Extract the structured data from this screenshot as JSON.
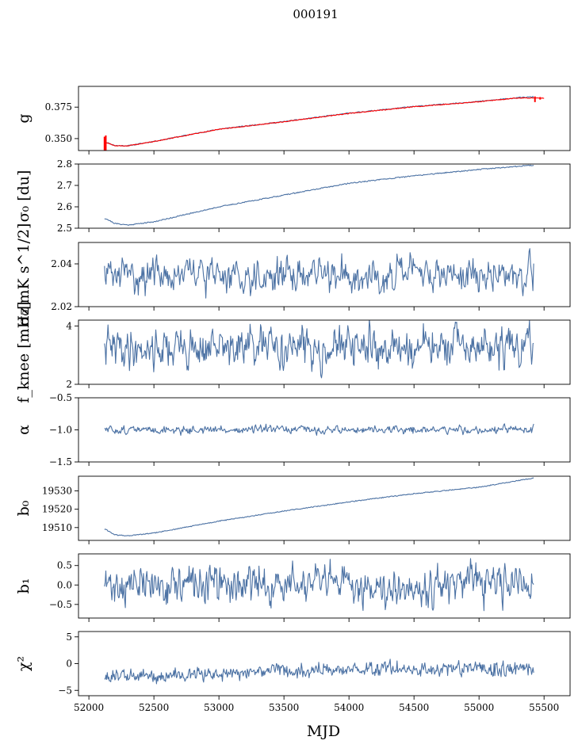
{
  "figure_title": "000191",
  "colors": {
    "series": "#4c72a4",
    "fit": "#ff0000"
  },
  "chart_data": {
    "type": "line",
    "title": "000191",
    "xlabel": "MJD",
    "xlim": [
      51920,
      55700
    ],
    "x_ticks": [
      52000,
      52500,
      53000,
      53500,
      54000,
      54500,
      55000,
      55500
    ],
    "x_tick_labels": [
      "52000",
      "52500",
      "53000",
      "53500",
      "54000",
      "54500",
      "55000",
      "55500"
    ],
    "x_start": 52120,
    "x_end": 55420,
    "panels": [
      {
        "id": "gain",
        "ylabel": "g",
        "ylim": [
          0.3405,
          0.3915
        ],
        "y_ticks": [
          0.35,
          0.375
        ],
        "y_tick_labels": [
          "0.350",
          "0.375"
        ],
        "series": [
          {
            "name": "gain",
            "shape": {
              "kind": "curve",
              "knots": [
                [
                  52120,
                  0.3475
                ],
                [
                  52200,
                  0.3445
                ],
                [
                  52300,
                  0.3443
                ],
                [
                  52500,
                  0.3478
                ],
                [
                  53000,
                  0.3575
                ],
                [
                  53500,
                  0.3635
                ],
                [
                  54000,
                  0.3702
                ],
                [
                  54500,
                  0.3755
                ],
                [
                  55000,
                  0.3795
                ],
                [
                  55300,
                  0.3825
                ],
                [
                  55420,
                  0.3832
                ]
              ],
              "noise": 0.0004,
              "seed": 11
            }
          },
          {
            "name": "fit",
            "color_key": "fit",
            "shape": {
              "kind": "curve",
              "knots": [
                [
                  52120,
                  0.3475
                ],
                [
                  52200,
                  0.3443
                ],
                [
                  52300,
                  0.3442
                ],
                [
                  52500,
                  0.3477
                ],
                [
                  53000,
                  0.3574
                ],
                [
                  53500,
                  0.3634
                ],
                [
                  54000,
                  0.37
                ],
                [
                  54500,
                  0.3753
                ],
                [
                  55000,
                  0.3793
                ],
                [
                  55300,
                  0.3823
                ],
                [
                  55500,
                  0.3822
                ]
              ],
              "noise": 0.0003,
              "seed": 12,
              "x_end": 55500
            }
          }
        ]
      },
      {
        "id": "sigma0-du",
        "ylabel": "σ₀ [du]",
        "ylim": [
          2.5,
          2.8
        ],
        "y_ticks": [
          2.5,
          2.6,
          2.7,
          2.8
        ],
        "y_tick_labels": [
          "2.5",
          "2.6",
          "2.7",
          "2.8"
        ],
        "series": [
          {
            "name": "sigma0 du",
            "shape": {
              "kind": "curve",
              "knots": [
                [
                  52130,
                  2.545
                ],
                [
                  52200,
                  2.522
                ],
                [
                  52300,
                  2.515
                ],
                [
                  52500,
                  2.53
                ],
                [
                  53000,
                  2.6
                ],
                [
                  53500,
                  2.655
                ],
                [
                  54000,
                  2.71
                ],
                [
                  54500,
                  2.745
                ],
                [
                  55000,
                  2.775
                ],
                [
                  55420,
                  2.795
                ]
              ],
              "noise": 0.0025,
              "seed": 21
            }
          }
        ]
      },
      {
        "id": "sigma0-mk",
        "ylabel": "σ₀[mK s^1/2]",
        "ylim": [
          2.02,
          2.05
        ],
        "y_ticks": [
          2.02,
          2.04
        ],
        "y_tick_labels": [
          "2.02",
          "2.04"
        ],
        "series": [
          {
            "name": "sigma0 mK",
            "shape": {
              "kind": "noise",
              "mean": 2.035,
              "amp": 0.0045,
              "seed": 31,
              "start_value": 2.039,
              "n": 560
            }
          }
        ]
      },
      {
        "id": "fknee",
        "ylabel": "f_knee [mHz]",
        "ylim": [
          2.0,
          4.2
        ],
        "y_ticks": [
          2,
          4
        ],
        "y_tick_labels": [
          "2",
          "4"
        ],
        "series": [
          {
            "name": "fknee",
            "shape": {
              "kind": "noise",
              "mean": 3.25,
              "amp": 0.38,
              "seed": 41,
              "start_value": 3.4,
              "n": 620
            }
          }
        ]
      },
      {
        "id": "alpha",
        "ylabel": "α",
        "ylim": [
          -1.5,
          -0.5
        ],
        "y_ticks": [
          -1.5,
          -1.0,
          -0.5
        ],
        "y_tick_labels": [
          "−1.5",
          "−1.0",
          "−0.5"
        ],
        "series": [
          {
            "name": "alpha",
            "shape": {
              "kind": "noise",
              "mean": -1.0,
              "amp": 0.035,
              "seed": 51,
              "n": 620
            }
          }
        ]
      },
      {
        "id": "b0",
        "ylabel": "b₀",
        "ylim": [
          19503,
          19538
        ],
        "y_ticks": [
          19510,
          19520,
          19530
        ],
        "y_tick_labels": [
          "19510",
          "19520",
          "19530"
        ],
        "series": [
          {
            "name": "b0",
            "shape": {
              "kind": "curve",
              "knots": [
                [
                  52130,
                  19509
                ],
                [
                  52200,
                  19506
                ],
                [
                  52300,
                  19505.5
                ],
                [
                  52500,
                  19507
                ],
                [
                  53000,
                  19513.5
                ],
                [
                  53500,
                  19519
                ],
                [
                  54000,
                  19524
                ],
                [
                  54500,
                  19528.5
                ],
                [
                  55000,
                  19532
                ],
                [
                  55420,
                  19537
                ]
              ],
              "noise": 0.25,
              "seed": 61
            }
          }
        ]
      },
      {
        "id": "b1",
        "ylabel": "b₁",
        "ylim": [
          -0.85,
          0.8
        ],
        "y_ticks": [
          -0.5,
          0.0,
          0.5
        ],
        "y_tick_labels": [
          "−0.5",
          "0.0",
          "0.5"
        ],
        "series": [
          {
            "name": "b1",
            "shape": {
              "kind": "noise",
              "mean": 0.0,
              "amp": 0.27,
              "seed": 71,
              "n": 640
            }
          }
        ]
      },
      {
        "id": "chi2",
        "ylabel": "χ²",
        "ylim": [
          -6,
          6
        ],
        "y_ticks": [
          -5,
          0,
          5
        ],
        "y_tick_labels": [
          "−5",
          "0",
          "5"
        ],
        "series": [
          {
            "name": "chi2",
            "shape": {
              "kind": "trend-noise",
              "knots": [
                [
                  52120,
                  -2.4
                ],
                [
                  52600,
                  -2.3
                ],
                [
                  53000,
                  -1.8
                ],
                [
                  53500,
                  -1.4
                ],
                [
                  54000,
                  -1.0
                ],
                [
                  54500,
                  -1.0
                ],
                [
                  55420,
                  -1.1
                ]
              ],
              "amp": 0.8,
              "seed": 81,
              "n": 620
            }
          }
        ]
      }
    ]
  }
}
